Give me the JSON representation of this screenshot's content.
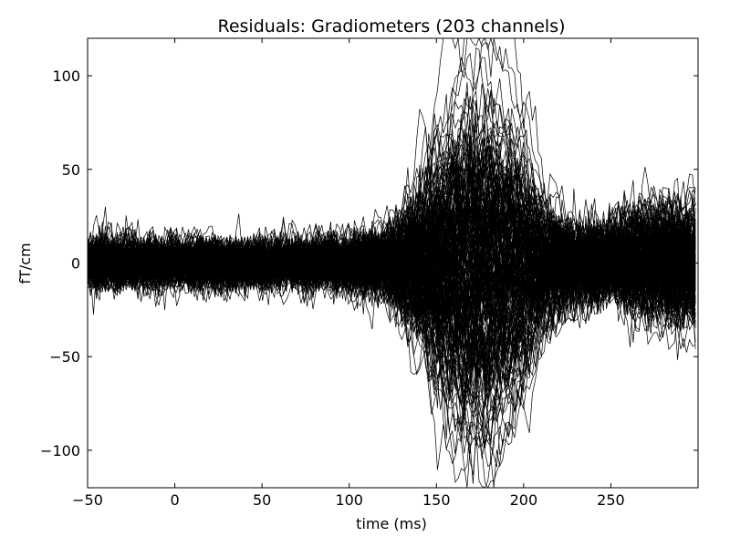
{
  "chart_data": {
    "type": "line",
    "title": "Residuals: Gradiometers (203 channels)",
    "xlabel": "time (ms)",
    "ylabel": "fT/cm",
    "xlim": [
      -50,
      300
    ],
    "ylim": [
      -120,
      120
    ],
    "xticks": [
      -50,
      0,
      50,
      100,
      150,
      200,
      250
    ],
    "xtick_labels": [
      "−50",
      "0",
      "50",
      "100",
      "150",
      "200",
      "250"
    ],
    "yticks": [
      -100,
      -50,
      0,
      50,
      100
    ],
    "ytick_labels": [
      "−100",
      "−50",
      "0",
      "50",
      "100"
    ],
    "grid": false,
    "legend": "none",
    "line_color": "#000000",
    "channel_count": 203,
    "sample_step_ms": 1.7,
    "noise_envelope": {
      "time": [
        -50,
        0,
        50,
        100,
        125,
        140,
        160,
        175,
        190,
        210,
        230,
        260,
        300
      ],
      "std": [
        9,
        8,
        8,
        9,
        11,
        15,
        18,
        20,
        16,
        12,
        13,
        13,
        13
      ]
    },
    "response": {
      "time": [
        100,
        120,
        135,
        150,
        160,
        170,
        180,
        190,
        200,
        210,
        220,
        240,
        260,
        300
      ],
      "peak_amplitude": [
        0,
        8,
        25,
        60,
        85,
        95,
        95,
        85,
        60,
        30,
        15,
        5,
        0,
        0
      ],
      "peak_time_ms": 172
    },
    "late_drift_max": 30
  }
}
